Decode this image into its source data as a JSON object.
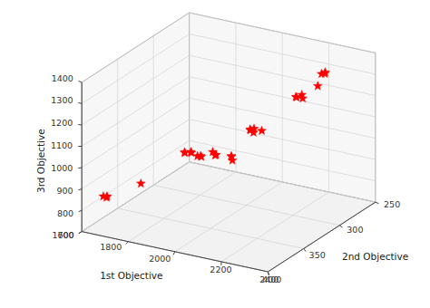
{
  "chart_data": {
    "type": "scatter3d",
    "xlabel": "1st Objective",
    "ylabel": "2nd Objective",
    "zlabel": "3rd Objective",
    "x": [
      1600,
      1610,
      1620,
      1700,
      1780,
      1790,
      1800,
      1810,
      1820,
      1830,
      1840,
      1870,
      1890,
      1900,
      1950,
      1960,
      1970,
      2000,
      2010,
      2020,
      2030,
      2050,
      2150,
      2160,
      2170,
      2180,
      2220,
      2230,
      2240,
      2250
    ],
    "y": [
      370,
      368,
      372,
      350,
      315,
      318,
      312,
      316,
      310,
      308,
      312,
      305,
      308,
      310,
      305,
      308,
      310,
      295,
      298,
      296,
      300,
      295,
      280,
      282,
      278,
      280,
      272,
      270,
      268,
      272
    ],
    "z": [
      800,
      798,
      803,
      840,
      930,
      935,
      925,
      940,
      910,
      905,
      920,
      930,
      925,
      935,
      930,
      935,
      925,
      1045,
      1050,
      1055,
      1048,
      1050,
      1200,
      1205,
      1210,
      1200,
      1250,
      1305,
      1310,
      1315
    ],
    "color": "#ff0000",
    "marker": "star",
    "xlim": [
      1600,
      2400
    ],
    "ylim": [
      400,
      250
    ],
    "zlim": [
      700,
      1400
    ],
    "xticks": [
      1600,
      1800,
      2000,
      2200,
      2400
    ],
    "yticks": [
      250,
      300,
      350,
      400
    ],
    "zticks": [
      700,
      800,
      900,
      1000,
      1100,
      1200,
      1300,
      1400
    ],
    "grid": true
  }
}
